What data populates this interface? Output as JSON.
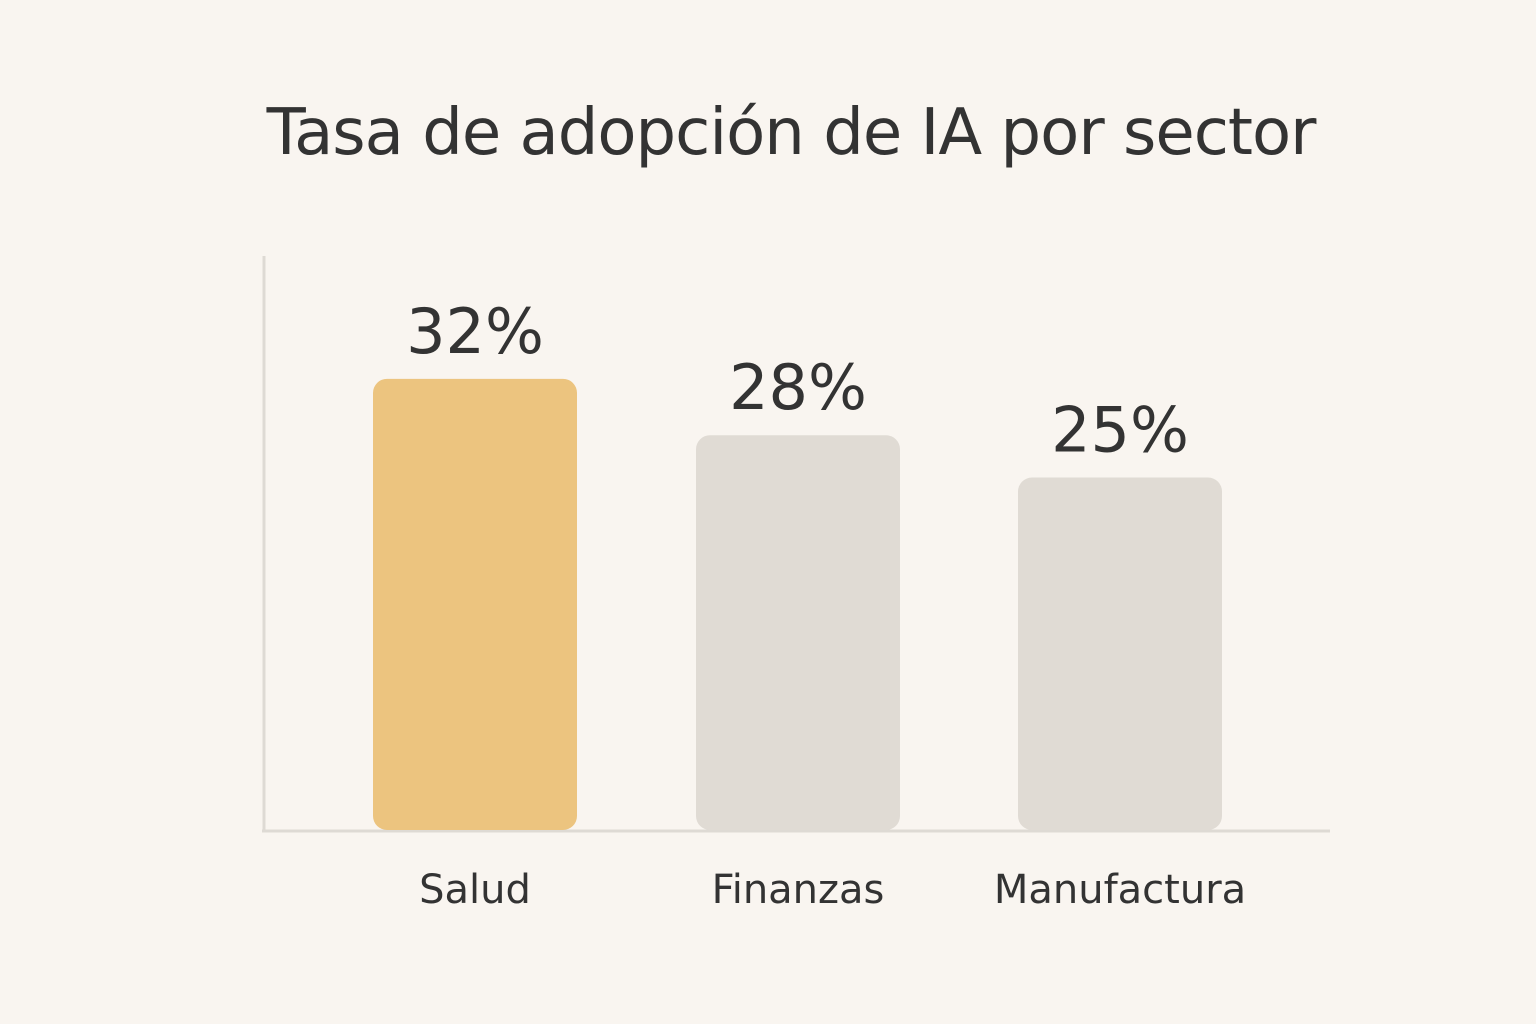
{
  "chart_data": {
    "type": "bar",
    "title": "Tasa de adopción de IA por sector",
    "xlabel": "",
    "ylabel": "",
    "categories": [
      "Salud",
      "Finanzas",
      "Manufactura"
    ],
    "values": [
      32,
      28,
      25
    ],
    "value_labels": [
      "32%",
      "28%",
      "25%"
    ],
    "ylim": [
      0,
      36.6
    ],
    "grid": false,
    "legend": "none",
    "colors": {
      "highlight": "#ecc47f",
      "default": "#e0dbd4",
      "axis": "#dedad4",
      "text": "#333333",
      "background": "#f9f5f0"
    },
    "highlight_index": 0
  }
}
